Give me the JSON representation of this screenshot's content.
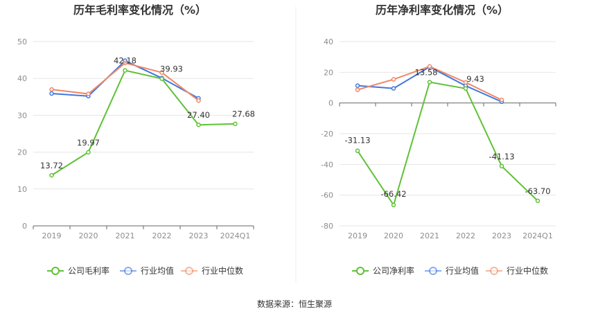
{
  "source_text": "数据来源：恒生聚源",
  "colors": {
    "company": "#5fc136",
    "industry_avg": "#3f76e0",
    "industry_median": "#ee8866",
    "grid": "#e6e6e6",
    "axis": "#666666"
  },
  "chart_data": [
    {
      "type": "line",
      "title": "历年毛利率变化情况（%）",
      "categories": [
        "2019",
        "2020",
        "2021",
        "2022",
        "2023",
        "2024Q1"
      ],
      "ylim": [
        0,
        50
      ],
      "yticks": [
        0,
        10,
        20,
        30,
        40,
        50
      ],
      "series": [
        {
          "name": "公司毛利率",
          "color": "#5fc136",
          "labels": true,
          "values": [
            13.72,
            19.97,
            42.18,
            39.93,
            27.4,
            27.68
          ],
          "value_labels": [
            "13.72",
            "19.97",
            "42.18",
            "39.93",
            "27.40",
            "27.68"
          ]
        },
        {
          "name": "行业均值",
          "color": "#3f76e0",
          "values": [
            35.9,
            35.2,
            44.8,
            40.1,
            34.6,
            null
          ]
        },
        {
          "name": "行业中位数",
          "color": "#ee8866",
          "values": [
            37.0,
            35.8,
            44.2,
            41.6,
            34.0,
            null
          ]
        }
      ]
    },
    {
      "type": "line",
      "title": "历年净利率变化情况（%）",
      "categories": [
        "2019",
        "2020",
        "2021",
        "2022",
        "2023",
        "2024Q1"
      ],
      "ylim": [
        -80,
        40
      ],
      "yticks": [
        -80,
        -60,
        -40,
        -20,
        0,
        20,
        40
      ],
      "series": [
        {
          "name": "公司净利率",
          "color": "#5fc136",
          "labels": true,
          "values": [
            -31.13,
            -66.42,
            13.58,
            9.43,
            -41.13,
            -63.7
          ],
          "value_labels": [
            "-31.13",
            "-66.42",
            "13.58",
            "9.43",
            "-41.13",
            "-63.70"
          ]
        },
        {
          "name": "行业均值",
          "color": "#3f76e0",
          "values": [
            11.3,
            9.5,
            23.5,
            11.2,
            0.8,
            null
          ]
        },
        {
          "name": "行业中位数",
          "color": "#ee8866",
          "values": [
            8.6,
            15.4,
            23.8,
            13.4,
            2.0,
            null
          ]
        }
      ]
    }
  ]
}
